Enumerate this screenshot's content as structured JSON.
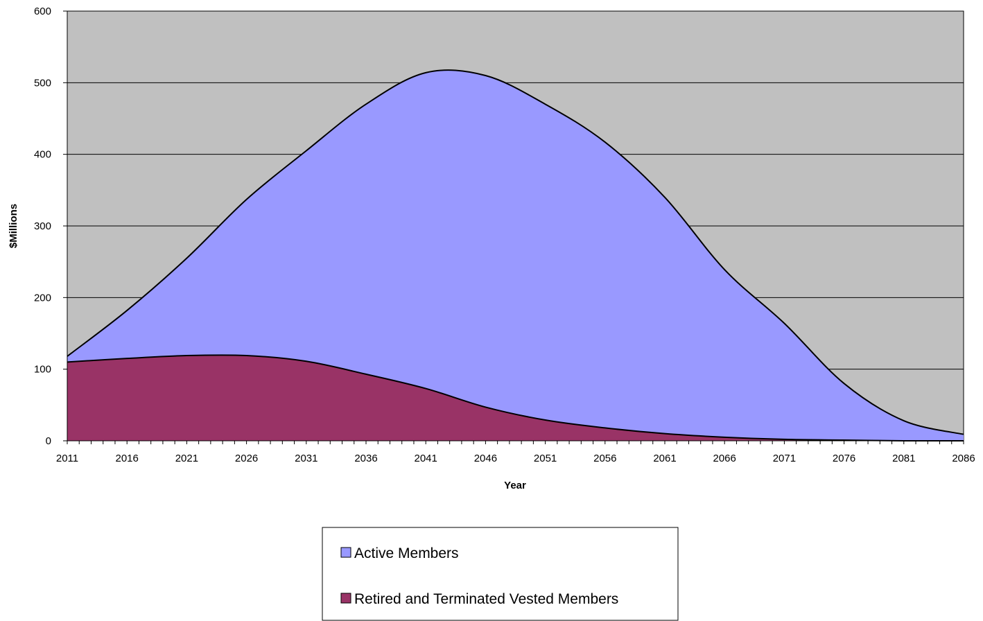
{
  "chart_data": {
    "type": "area",
    "stacked": true,
    "title": "",
    "xlabel": "Year",
    "ylabel": "$Millions",
    "xlim": [
      2011,
      2086
    ],
    "ylim": [
      0,
      600
    ],
    "yticks": [
      "0",
      "100",
      "200",
      "300",
      "400",
      "500",
      "600"
    ],
    "xticks": [
      "2011",
      "2016",
      "2021",
      "2026",
      "2031",
      "2036",
      "2041",
      "2046",
      "2051",
      "2056",
      "2061",
      "2066",
      "2071",
      "2076",
      "2081",
      "2086"
    ],
    "grid": true,
    "legend_position": "bottom-center",
    "plot_background": "#c0c0c0",
    "x": [
      2011,
      2016,
      2021,
      2026,
      2031,
      2036,
      2041,
      2046,
      2051,
      2056,
      2061,
      2066,
      2071,
      2076,
      2081,
      2086
    ],
    "series": [
      {
        "name": "Retired and Terminated Vested Members",
        "color": "#993366",
        "values": [
          110,
          115,
          119,
          119,
          111,
          93,
          73,
          47,
          29,
          18,
          10,
          5,
          2,
          1,
          0,
          0
        ]
      },
      {
        "name": "Active Members",
        "color": "#9999ff",
        "values": [
          8,
          67,
          136,
          218,
          294,
          377,
          441,
          463,
          441,
          399,
          330,
          234,
          162,
          79,
          28,
          9
        ]
      }
    ]
  }
}
